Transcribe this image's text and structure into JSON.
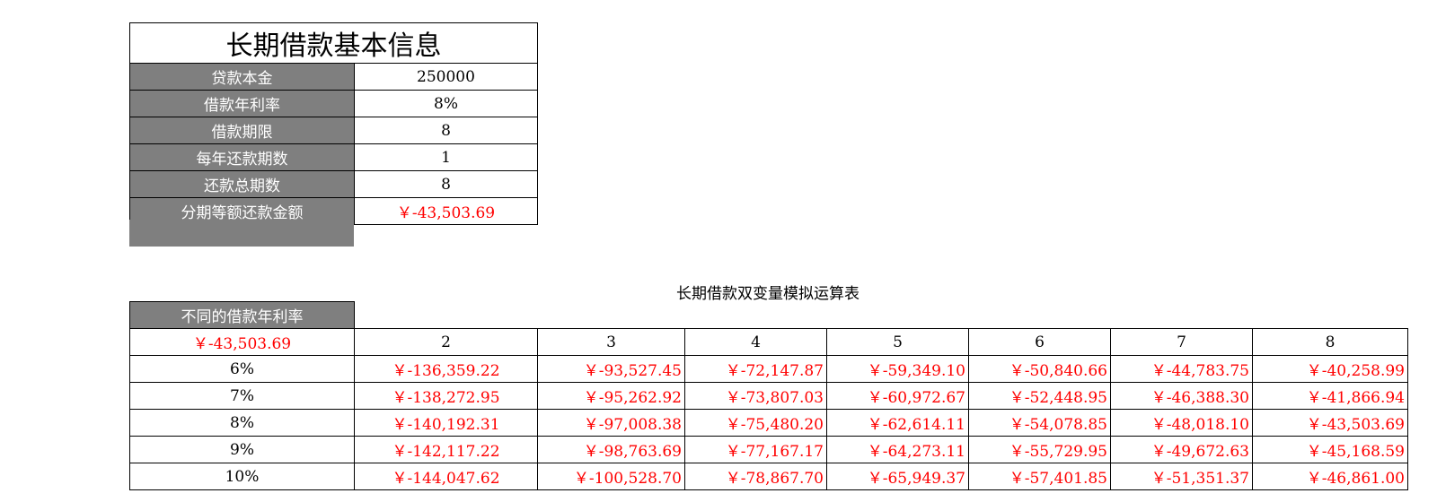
{
  "info": {
    "title": "长期借款基本信息",
    "rows": [
      {
        "label": "贷款本金",
        "value": "250000"
      },
      {
        "label": "借款年利率",
        "value": "8%"
      },
      {
        "label": "借款期限",
        "value": "8"
      },
      {
        "label": "每年还款期数",
        "value": "1"
      },
      {
        "label": "还款总期数",
        "value": "8"
      },
      {
        "label": "分期等额还款金额",
        "value": "￥-43,503.69"
      }
    ]
  },
  "sim": {
    "title": "长期借款双变量模拟运算表",
    "row_header": "不同的借款年利率",
    "corner": "￥-43,503.69",
    "periods": [
      "2",
      "3",
      "4",
      "5",
      "6",
      "7",
      "8"
    ],
    "rows": [
      {
        "rate": "6%",
        "values": [
          "￥-136,359.22",
          "￥-93,527.45",
          "￥-72,147.87",
          "￥-59,349.10",
          "￥-50,840.66",
          "￥-44,783.75",
          "￥-40,258.99"
        ]
      },
      {
        "rate": "7%",
        "values": [
          "￥-138,272.95",
          "￥-95,262.92",
          "￥-73,807.03",
          "￥-60,972.67",
          "￥-52,448.95",
          "￥-46,388.30",
          "￥-41,866.94"
        ]
      },
      {
        "rate": "8%",
        "values": [
          "￥-140,192.31",
          "￥-97,008.38",
          "￥-75,480.20",
          "￥-62,614.11",
          "￥-54,078.85",
          "￥-48,018.10",
          "￥-43,503.69"
        ]
      },
      {
        "rate": "9%",
        "values": [
          "￥-142,117.22",
          "￥-98,763.69",
          "￥-77,167.17",
          "￥-64,273.11",
          "￥-55,729.95",
          "￥-49,672.63",
          "￥-45,168.59"
        ]
      },
      {
        "rate": "10%",
        "values": [
          "￥-144,047.62",
          "￥-100,528.70",
          "￥-78,867.70",
          "￥-65,949.37",
          "￥-57,401.85",
          "￥-51,351.37",
          "￥-46,861.00"
        ]
      }
    ]
  },
  "colors": {
    "label_bg": "#7f7f7f",
    "negative": "#ff0000"
  }
}
